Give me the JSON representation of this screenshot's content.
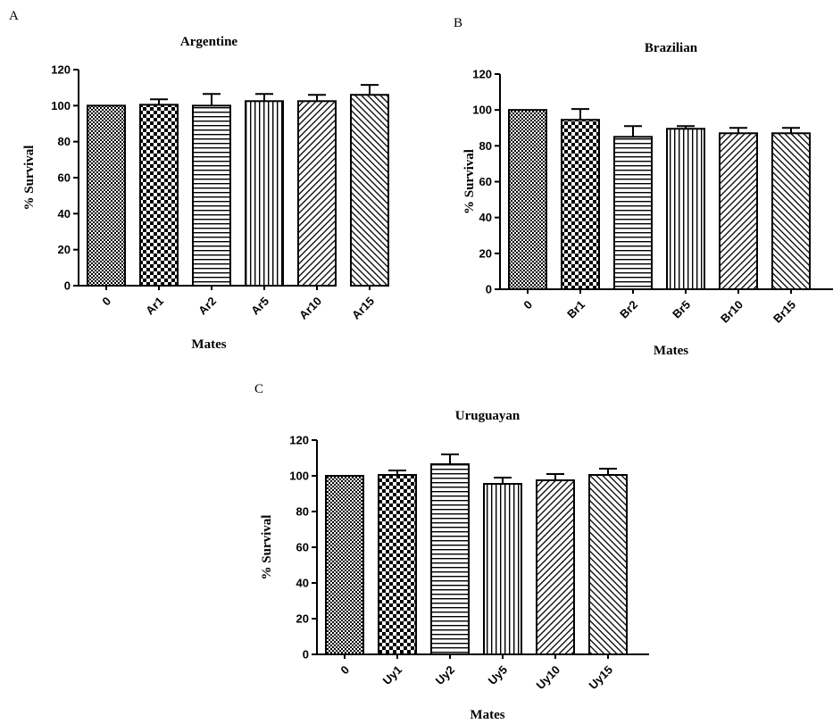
{
  "chart_data": [
    {
      "type": "bar",
      "panel": "A",
      "title": "Argentine",
      "xlabel": "Mates",
      "ylabel": "% Survival",
      "ylim": [
        0,
        120
      ],
      "yticks": [
        0,
        20,
        40,
        60,
        80,
        100,
        120
      ],
      "grid": false,
      "categories": [
        "0",
        "Ar1",
        "Ar2",
        "Ar5",
        "Ar10",
        "Ar15"
      ],
      "values": [
        100,
        100.5,
        100,
        102.5,
        102.5,
        106
      ],
      "errors": [
        0,
        3,
        6.5,
        4,
        3.5,
        5.5
      ],
      "patterns": [
        "fine-dots",
        "checker",
        "horizontal",
        "vertical",
        "diag-right",
        "diag-left"
      ]
    },
    {
      "type": "bar",
      "panel": "B",
      "title": "Brazilian",
      "xlabel": "Mates",
      "ylabel": "% Survival",
      "ylim": [
        0,
        120
      ],
      "yticks": [
        0,
        20,
        40,
        60,
        80,
        100,
        120
      ],
      "grid": false,
      "categories": [
        "0",
        "Br1",
        "Br2",
        "Br5",
        "Br10",
        "Br15"
      ],
      "values": [
        100,
        94.5,
        85,
        89.5,
        87,
        87
      ],
      "errors": [
        0,
        6,
        6,
        1.5,
        3,
        3
      ],
      "patterns": [
        "fine-dots",
        "checker",
        "horizontal",
        "vertical",
        "diag-right",
        "diag-left"
      ]
    },
    {
      "type": "bar",
      "panel": "C",
      "title": "Uruguayan",
      "xlabel": "Mates",
      "ylabel": "% Survival",
      "ylim": [
        0,
        120
      ],
      "yticks": [
        0,
        20,
        40,
        60,
        80,
        100,
        120
      ],
      "grid": false,
      "categories": [
        "0",
        "Uy1",
        "Uy2",
        "Uy5",
        "Uy10",
        "Uy15"
      ],
      "values": [
        100,
        100.5,
        106.5,
        95.5,
        97.5,
        100.5
      ],
      "errors": [
        0,
        2.5,
        5.5,
        3.5,
        3.5,
        3.5
      ],
      "patterns": [
        "fine-dots",
        "checker",
        "horizontal",
        "vertical",
        "diag-right",
        "diag-left"
      ]
    }
  ],
  "colors": {
    "ink": "#000000",
    "background": "#ffffff"
  }
}
